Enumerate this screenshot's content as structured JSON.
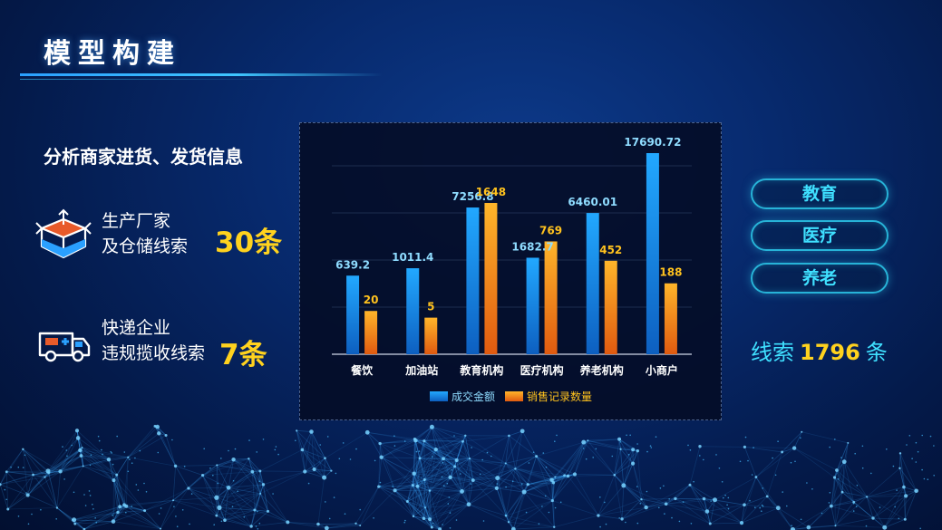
{
  "header": {
    "title": "模型构建"
  },
  "left": {
    "subtitle": "分析商家进货、发货信息",
    "leads": [
      {
        "icon": "box-icon",
        "line1": "生产厂家",
        "line2": "及仓储线索",
        "count": "30条"
      },
      {
        "icon": "ambulance-icon",
        "line1": "快递企业",
        "line2": "违规揽收线索",
        "count": "7条"
      }
    ]
  },
  "tags": [
    "教育",
    "医疗",
    "养老"
  ],
  "clue_total": {
    "prefix": "线索",
    "value": "1796",
    "suffix": "条"
  },
  "colors": {
    "accent": "#3fe0ff",
    "highlight": "#ffd21e",
    "bar_blue": "#1e88e5",
    "bar_orange": "#f5a01a"
  },
  "chart_data": {
    "type": "bar",
    "categories": [
      "餐饮",
      "加油站",
      "教育机构",
      "医疗机构",
      "养老机构",
      "小商户"
    ],
    "series": [
      {
        "name": "成交金额",
        "values": [
          639.2,
          1011.4,
          7256.8,
          1682.7,
          6460.01,
          17690.72
        ],
        "labels": [
          "639.2",
          "1011.4",
          "7256.8",
          "1682.7",
          "6460.01",
          "17690.72"
        ]
      },
      {
        "name": "销售记录数量",
        "values": [
          20,
          5,
          1648,
          769,
          452,
          188
        ],
        "labels": [
          "20",
          "5",
          "1648",
          "769",
          "452",
          "188"
        ]
      }
    ],
    "legend": "bottom-center",
    "grid": true
  }
}
